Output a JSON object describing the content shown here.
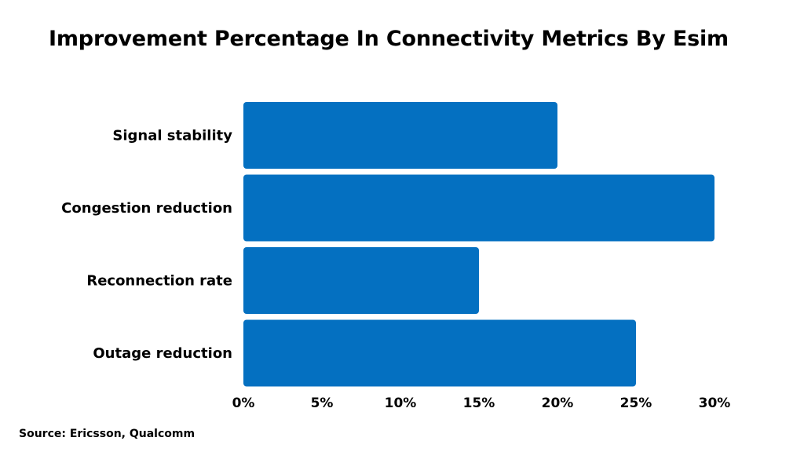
{
  "chart_data": {
    "type": "bar",
    "orientation": "horizontal",
    "title": "Improvement Percentage In Connectivity Metrics By Esim",
    "categories": [
      "Signal stability",
      "Congestion reduction",
      "Reconnection rate",
      "Outage reduction"
    ],
    "values": [
      20,
      30,
      15,
      25
    ],
    "unit": "%",
    "xlim": [
      0,
      30
    ],
    "x_ticks": [
      0,
      5,
      10,
      15,
      20,
      25,
      30
    ],
    "x_tick_labels": [
      "0%",
      "5%",
      "10%",
      "15%",
      "20%",
      "25%",
      "30%"
    ],
    "xlabel": "",
    "ylabel": "",
    "grid": false,
    "legend": "none",
    "bar_color": "#0470c1"
  },
  "source": "Source: Ericsson, Qualcomm"
}
